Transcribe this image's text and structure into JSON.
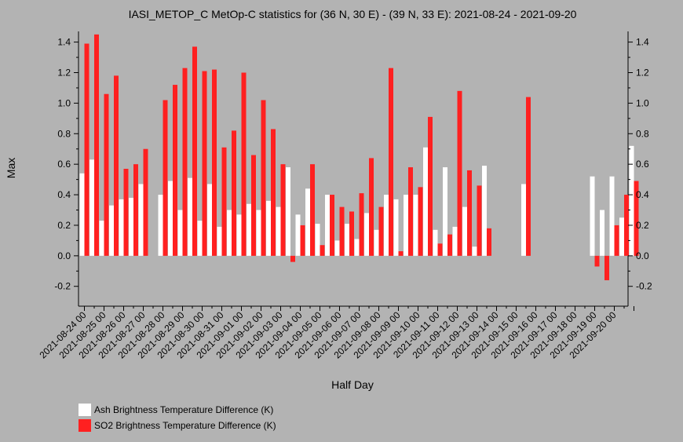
{
  "chart_data": {
    "type": "bar",
    "title": "IASI_METOP_C MetOp-C statistics for (36 N, 30 E) - (39 N, 33 E): 2021-08-24 - 2021-09-20",
    "xlabel": "Half Day",
    "ylabel": "Max",
    "ylim": [
      -0.33,
      1.47
    ],
    "yticks": [
      "-0.2",
      "0.0",
      "0.2",
      "0.4",
      "0.6",
      "0.8",
      "1.0",
      "1.2",
      "1.4"
    ],
    "ytick_values": [
      -0.2,
      0.0,
      0.2,
      0.4,
      0.6,
      0.8,
      1.0,
      1.2,
      1.4
    ],
    "date_labels": [
      "2021-08-24 00",
      "2021-08-25 00",
      "2021-08-26 00",
      "2021-08-27 00",
      "2021-08-28 00",
      "2021-08-29 00",
      "2021-08-30 00",
      "2021-08-31 00",
      "2021-09-01 00",
      "2021-09-02 00",
      "2021-09-03 00",
      "2021-09-04 00",
      "2021-09-05 00",
      "2021-09-06 00",
      "2021-09-07 00",
      "2021-09-08 00",
      "2021-09-09 00",
      "2021-09-10 00",
      "2021-09-11 00",
      "2021-09-12 00",
      "2021-09-13 00",
      "2021-09-14 00",
      "2021-09-15 00",
      "2021-09-16 00",
      "2021-09-17 00",
      "2021-09-18 00",
      "2021-09-19 00",
      "2021-09-20 00"
    ],
    "grid": false,
    "legend": "bottom-left",
    "series": [
      {
        "name": "Ash Brightness Temperature Difference (K)",
        "color": "#ffffff",
        "values": [
          0.54,
          0.63,
          0.23,
          0.33,
          0.37,
          0.38,
          0.47,
          null,
          0.4,
          0.49,
          0.3,
          0.51,
          0.23,
          0.47,
          0.19,
          0.3,
          0.27,
          0.34,
          0.3,
          0.36,
          0.32,
          0.58,
          0.27,
          0.44,
          0.21,
          0.4,
          0.1,
          0.21,
          0.11,
          0.28,
          0.17,
          0.4,
          0.37,
          0.4,
          0.4,
          0.71,
          0.17,
          0.58,
          0.19,
          0.32,
          0.06,
          0.59,
          null,
          null,
          null,
          0.47,
          null,
          null,
          null,
          null,
          null,
          null,
          0.52,
          0.3,
          0.52,
          0.25,
          0.72
        ]
      },
      {
        "name": "SO2 Brightness Temperature Difference (K)",
        "color": "#ff2020",
        "values": [
          1.39,
          1.45,
          1.06,
          1.18,
          0.57,
          0.6,
          0.7,
          null,
          1.02,
          1.12,
          1.23,
          1.37,
          1.21,
          1.22,
          0.71,
          0.82,
          1.2,
          0.66,
          1.02,
          0.83,
          0.6,
          -0.04,
          0.2,
          0.6,
          0.07,
          0.4,
          0.32,
          0.29,
          0.41,
          0.64,
          0.32,
          1.23,
          0.03,
          0.58,
          0.45,
          0.91,
          0.08,
          0.14,
          1.08,
          0.56,
          0.46,
          0.18,
          null,
          null,
          null,
          1.04,
          null,
          null,
          null,
          null,
          null,
          null,
          -0.07,
          -0.16,
          0.2,
          0.4,
          0.49
        ]
      }
    ]
  }
}
